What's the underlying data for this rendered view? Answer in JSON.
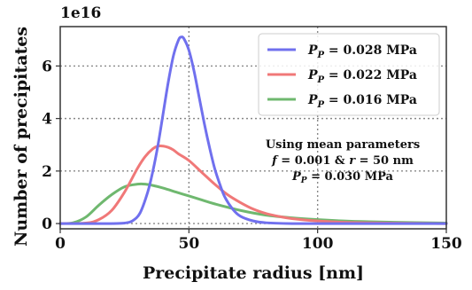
{
  "chart_data": {
    "type": "line",
    "xlabel": "Precipitate radius [nm]",
    "ylabel": "Number of precipitates",
    "offset_text": "1e16",
    "xlim": [
      0,
      150
    ],
    "ylim": [
      -0.2,
      7.5
    ],
    "xticks": [
      0,
      50,
      100,
      150
    ],
    "xtick_labels": [
      "0",
      "50",
      "100",
      "150"
    ],
    "yticks": [
      0,
      2,
      4,
      6
    ],
    "ytick_labels": [
      "0",
      "2",
      "4",
      "6"
    ],
    "grid": true,
    "legend_position": "top-right",
    "series": [
      {
        "name_main": "P",
        "name_sub": "P",
        "name_value": " = 0.028 MPa",
        "color": "#7070ee",
        "x": [
          0,
          20,
          25,
          28,
          31,
          34,
          36,
          38,
          40,
          42,
          44,
          46,
          47,
          48,
          50,
          52,
          54,
          56,
          58,
          60,
          62,
          64,
          67,
          70,
          75,
          80,
          90,
          100,
          150
        ],
        "y": [
          0,
          0,
          0.02,
          0.1,
          0.4,
          1.2,
          2.0,
          3.0,
          4.2,
          5.4,
          6.4,
          7.0,
          7.1,
          7.05,
          6.6,
          5.8,
          4.8,
          3.8,
          2.9,
          2.1,
          1.5,
          1.0,
          0.55,
          0.28,
          0.1,
          0.03,
          0,
          0,
          0
        ]
      },
      {
        "name_main": "P",
        "name_sub": "P",
        "name_value": " = 0.022 MPa",
        "color": "#f07878",
        "x": [
          0,
          10,
          15,
          20,
          25,
          30,
          33,
          36,
          38,
          40,
          42,
          44,
          46,
          50,
          55,
          60,
          65,
          70,
          75,
          80,
          85,
          90,
          100,
          110,
          120,
          135,
          150
        ],
        "y": [
          0,
          0.02,
          0.15,
          0.5,
          1.2,
          2.1,
          2.55,
          2.85,
          2.95,
          2.95,
          2.9,
          2.8,
          2.65,
          2.4,
          1.95,
          1.5,
          1.1,
          0.8,
          0.55,
          0.38,
          0.27,
          0.19,
          0.1,
          0.05,
          0.03,
          0.01,
          0
        ]
      },
      {
        "name_main": "P",
        "name_sub": "P",
        "name_value": " = 0.016 MPa",
        "color": "#6fb86f",
        "x": [
          0,
          5,
          10,
          15,
          20,
          25,
          30,
          33,
          36,
          40,
          45,
          50,
          55,
          60,
          70,
          80,
          90,
          100,
          110,
          120,
          135,
          150
        ],
        "y": [
          0,
          0.03,
          0.25,
          0.7,
          1.1,
          1.4,
          1.5,
          1.5,
          1.45,
          1.35,
          1.2,
          1.05,
          0.9,
          0.75,
          0.5,
          0.32,
          0.22,
          0.15,
          0.1,
          0.07,
          0.04,
          0.02
        ]
      }
    ],
    "annotation": {
      "line1": "Using mean parameters",
      "line2_f": "f",
      "line2_mid": " = 0.001 & ",
      "line2_r": "r",
      "line2_end": " = 50 nm",
      "line3_main": "P",
      "line3_sub": "P",
      "line3_value": " = 0.030 MPa"
    }
  }
}
